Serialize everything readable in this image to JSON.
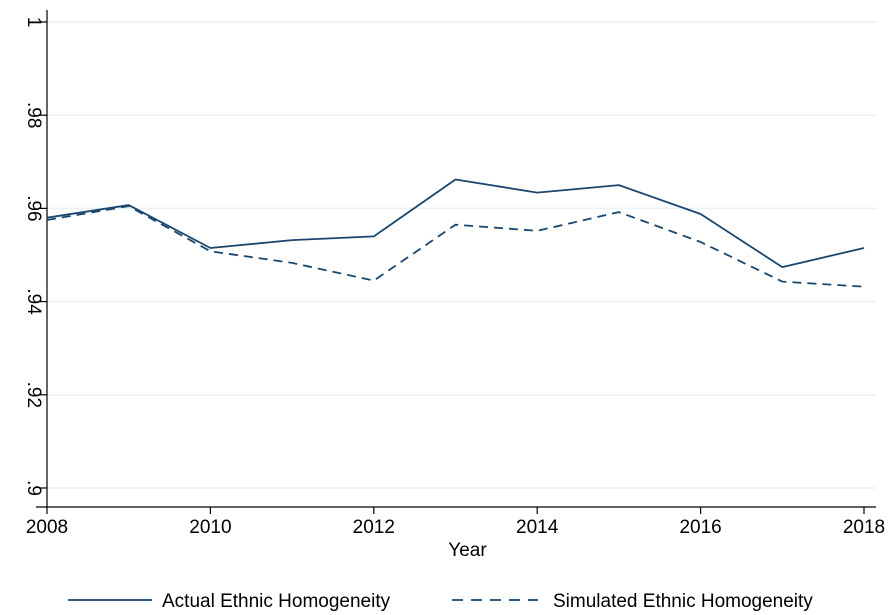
{
  "chart_data": {
    "type": "line",
    "title": "",
    "xlabel": "Year",
    "ylabel": "",
    "x": [
      2008,
      2009,
      2010,
      2011,
      2012,
      2013,
      2014,
      2015,
      2016,
      2017,
      2018
    ],
    "xlim": [
      2008,
      2018
    ],
    "ylim": [
      0.9,
      1.0
    ],
    "x_ticks": [
      2008,
      2010,
      2012,
      2014,
      2016,
      2018
    ],
    "x_tick_labels": [
      "2008",
      "2010",
      "2012",
      "2014",
      "2016",
      "2018"
    ],
    "y_ticks": [
      0.9,
      0.92,
      0.94,
      0.96,
      0.98,
      1.0
    ],
    "y_tick_labels": [
      ".9",
      ".92",
      ".94",
      ".96",
      ".98",
      "1"
    ],
    "y_tick_labels_rotated": true,
    "grid": true,
    "legend_position": "bottom",
    "series": [
      {
        "name": "Actual Ethnic Homogeneity",
        "style": "solid",
        "color": "#1a476f",
        "values": [
          0.958,
          0.9607,
          0.9515,
          0.9532,
          0.954,
          0.9662,
          0.9634,
          0.965,
          0.9588,
          0.9474,
          0.9515
        ]
      },
      {
        "name": "Simulated Ethnic Homogeneity",
        "style": "dashed",
        "color": "#1a476f",
        "values": [
          0.9575,
          0.9605,
          0.9508,
          0.9483,
          0.9445,
          0.9565,
          0.9552,
          0.9592,
          0.9528,
          0.9443,
          0.9432
        ]
      }
    ]
  }
}
